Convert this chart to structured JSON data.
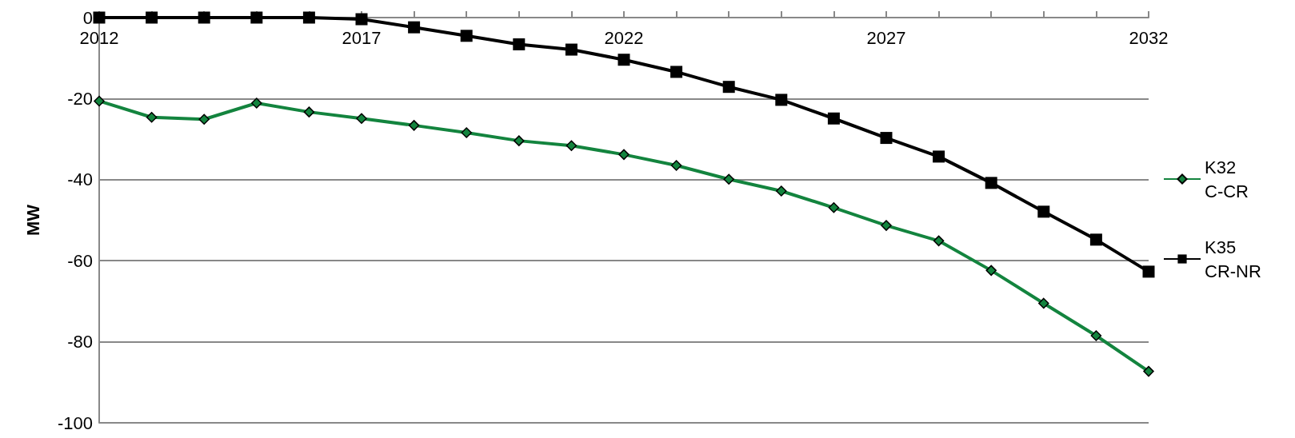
{
  "chart_data": {
    "type": "line",
    "ylabel": "MW",
    "x": [
      2012,
      2013,
      2014,
      2015,
      2016,
      2017,
      2018,
      2019,
      2020,
      2021,
      2022,
      2023,
      2024,
      2025,
      2026,
      2027,
      2028,
      2029,
      2030,
      2031,
      2032
    ],
    "series": [
      {
        "name": "K32 C-CR",
        "color": "#13843e",
        "marker": "diamond",
        "values": [
          -20.6,
          -24.6,
          -25.1,
          -21.1,
          -23.3,
          -24.9,
          -26.6,
          -28.4,
          -30.4,
          -31.6,
          -33.8,
          -36.5,
          -39.9,
          -42.8,
          -46.9,
          -51.3,
          -55.1,
          -62.4,
          -70.5,
          -78.5,
          -87.3
        ]
      },
      {
        "name": "K35 CR-NR",
        "color": "#000000",
        "marker": "square",
        "values": [
          0,
          0,
          0,
          0,
          0,
          -0.4,
          -2.4,
          -4.5,
          -6.6,
          -7.9,
          -10.4,
          -13.4,
          -17.1,
          -20.3,
          -24.9,
          -29.7,
          -34.3,
          -40.8,
          -47.9,
          -54.8,
          -62.7
        ]
      }
    ],
    "xlim": [
      2012,
      2032
    ],
    "xticks": [
      2012,
      {
        "value": 2013,
        "label": null
      },
      {
        "value": 2014,
        "label": null
      },
      {
        "value": 2015,
        "label": null
      },
      {
        "value": 2016,
        "label": null
      },
      2017,
      {
        "value": 2018,
        "label": null
      },
      {
        "value": 2019,
        "label": null
      },
      {
        "value": 2020,
        "label": null
      },
      {
        "value": 2021,
        "label": null
      },
      2022,
      {
        "value": 2023,
        "label": null
      },
      {
        "value": 2024,
        "label": null
      },
      {
        "value": 2025,
        "label": null
      },
      {
        "value": 2026,
        "label": null
      },
      2027,
      {
        "value": 2028,
        "label": null
      },
      {
        "value": 2029,
        "label": null
      },
      {
        "value": 2030,
        "label": null
      },
      {
        "value": 2031,
        "label": null
      },
      2032
    ],
    "ylim": [
      -100,
      0
    ],
    "yticks": [
      -100,
      -80,
      -60,
      -40,
      -20,
      0
    ],
    "grid": "y",
    "legend": "right",
    "line_style": "solid"
  }
}
